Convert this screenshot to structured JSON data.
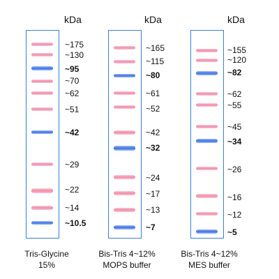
{
  "unit": "kDa",
  "ladders": [
    {
      "caption_line1": "Tris-Glycine",
      "caption_line2": "15%",
      "markers": [
        "~175",
        "~130",
        "~95",
        "~70",
        "~62",
        "~51",
        "~42",
        "~29",
        "~22",
        "~14",
        "~10.5"
      ],
      "bold": [
        "~95",
        "~42",
        "~10.5"
      ]
    },
    {
      "caption_line1": "Bis-Tris 4~12%",
      "caption_line2": "MOPS buffer",
      "markers": [
        "~165",
        "~115",
        "~80",
        "~61",
        "~52",
        "~42",
        "~32",
        "~24",
        "~17",
        "~13",
        "~7"
      ],
      "bold": [
        "~80",
        "~32",
        "~7"
      ]
    },
    {
      "caption_line1": "Bis-Tris 4~12%",
      "caption_line2": "MES buffer",
      "markers": [
        "~155",
        "~120",
        "~82",
        "~62",
        "~55",
        "~45",
        "~34",
        "~26",
        "~16",
        "~12",
        "~5"
      ],
      "bold": [
        "~82",
        "~34",
        "~5"
      ]
    }
  ],
  "colors": {
    "frame": "#3a7fd6",
    "pink_band": "#f28aa6",
    "blue_band": "#3c6fe6"
  }
}
